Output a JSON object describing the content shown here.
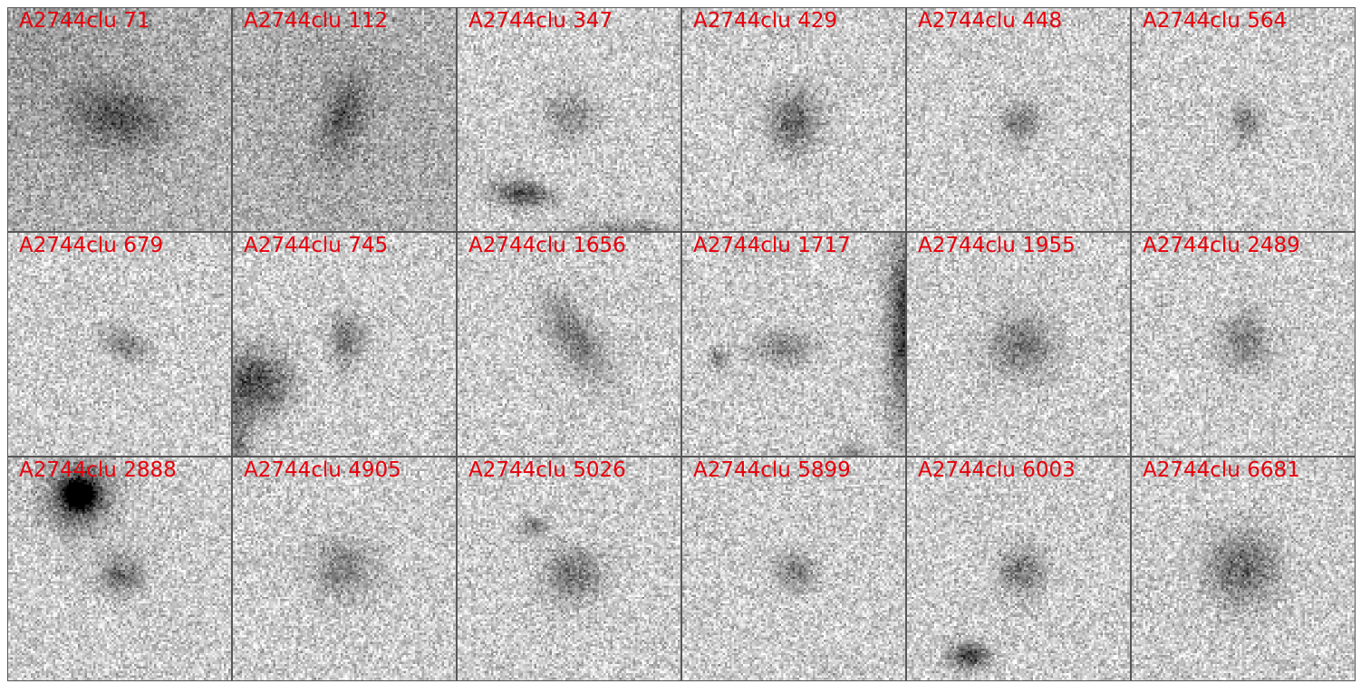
{
  "figure": {
    "label_color": "#e8000b",
    "colormap": "gray_r",
    "panels": [
      {
        "label": "A2744clu 71"
      },
      {
        "label": "A2744clu 112"
      },
      {
        "label": "A2744clu 347"
      },
      {
        "label": "A2744clu 429"
      },
      {
        "label": "A2744clu 448"
      },
      {
        "label": "A2744clu 564"
      },
      {
        "label": "A2744clu 679"
      },
      {
        "label": "A2744clu 745"
      },
      {
        "label": "A2744clu 1656"
      },
      {
        "label": "A2744clu 1717"
      },
      {
        "label": "A2744clu 1955"
      },
      {
        "label": "A2744clu 2489"
      },
      {
        "label": "A2744clu 2888"
      },
      {
        "label": "A2744clu 4905"
      },
      {
        "label": "A2744clu 5026"
      },
      {
        "label": "A2744clu 5899"
      },
      {
        "label": "A2744clu 6003"
      },
      {
        "label": "A2744clu 6681"
      }
    ]
  }
}
